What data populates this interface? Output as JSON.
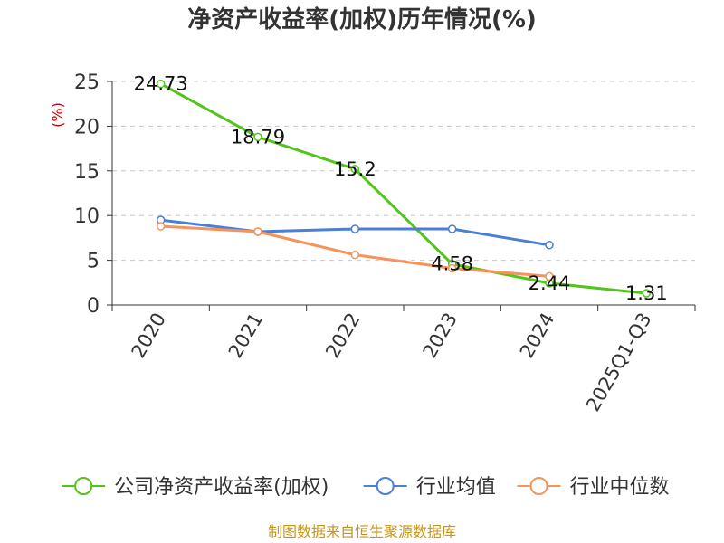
{
  "chart_data": {
    "type": "line",
    "title": "净资产收益率(加权)历年情况(%)",
    "ylabel": "(%)",
    "xlabel": "",
    "categories": [
      "2020",
      "2021",
      "2022",
      "2023",
      "2024",
      "2025Q1-Q3"
    ],
    "ylim": [
      0,
      25
    ],
    "yticks": [
      0,
      5,
      10,
      15,
      20,
      25
    ],
    "grid": true,
    "legend_position": "bottom",
    "series": [
      {
        "name": "公司净资产收益率(加权)",
        "color": "#52c41a",
        "values": [
          24.73,
          18.79,
          15.2,
          4.58,
          2.44,
          1.31
        ],
        "labels": [
          "24.73",
          "18.79",
          "15.2",
          "4.58",
          "2.44",
          "1.31"
        ],
        "show_labels": true
      },
      {
        "name": "行业均值",
        "color": "#4a7fd6",
        "values": [
          9.5,
          8.2,
          8.5,
          8.5,
          6.7,
          null
        ],
        "show_labels": false
      },
      {
        "name": "行业中位数",
        "color": "#f7925a",
        "values": [
          8.8,
          8.2,
          5.6,
          4.1,
          3.2,
          null
        ],
        "show_labels": false
      }
    ]
  },
  "source": "制图数据来自恒生聚源数据库"
}
